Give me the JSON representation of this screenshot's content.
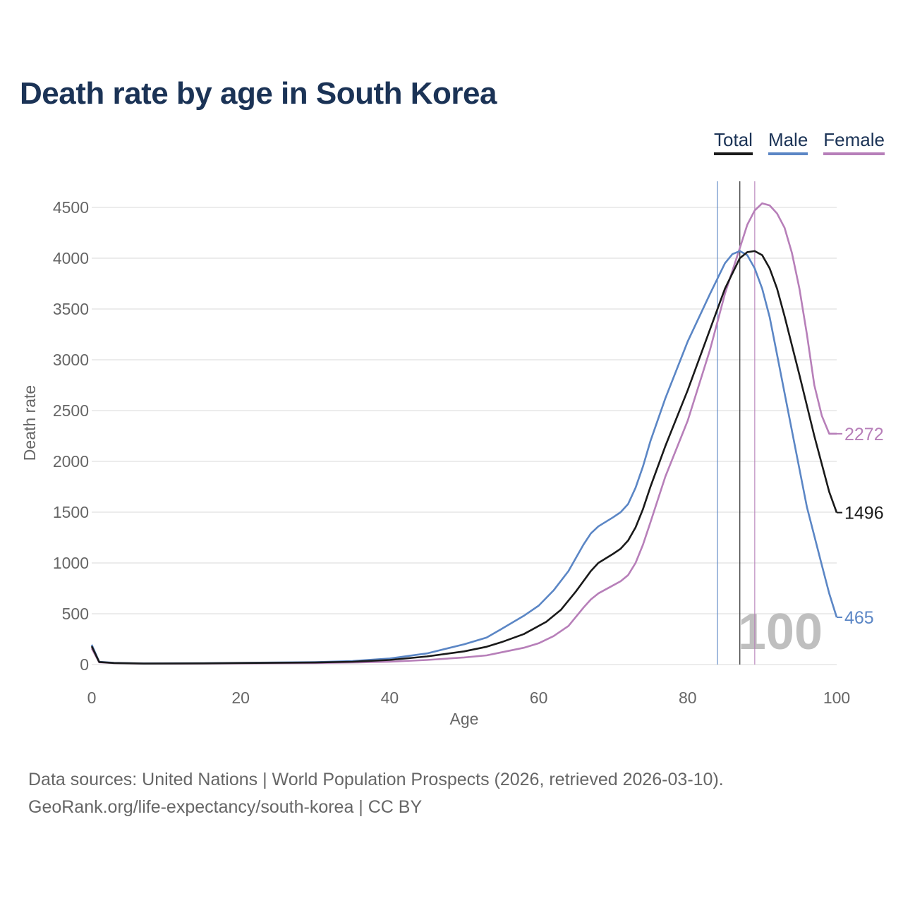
{
  "title": "Death rate by age in South Korea",
  "legend": {
    "total": {
      "label": "Total",
      "color": "#1a1a1a"
    },
    "male": {
      "label": "Male",
      "color": "#5b86c5"
    },
    "female": {
      "label": "Female",
      "color": "#b77fb9"
    }
  },
  "footer": {
    "line1": "Data sources: United Nations | World Population Prospects (2026, retrieved 2026-03-10).",
    "line2": "GeoRank.org/life-expectancy/south-korea | CC BY"
  },
  "chart_data": {
    "type": "line",
    "title": "Death rate by age in South Korea",
    "xlabel": "Age",
    "ylabel": "Death rate",
    "xlim": [
      0,
      100
    ],
    "ylim": [
      0,
      4700
    ],
    "x_ticks": [
      0,
      20,
      40,
      60,
      80,
      100
    ],
    "y_ticks": [
      0,
      500,
      1000,
      1500,
      2000,
      2500,
      3000,
      3500,
      4000,
      4500
    ],
    "grid": true,
    "watermark": "100",
    "series": [
      {
        "name": "Total",
        "color": "#1a1a1a",
        "end_label": "1496",
        "ref_age": 87,
        "points": [
          [
            0,
            180
          ],
          [
            1,
            25
          ],
          [
            3,
            15
          ],
          [
            7,
            10
          ],
          [
            15,
            12
          ],
          [
            20,
            15
          ],
          [
            30,
            20
          ],
          [
            35,
            28
          ],
          [
            40,
            45
          ],
          [
            45,
            80
          ],
          [
            50,
            130
          ],
          [
            53,
            175
          ],
          [
            55,
            220
          ],
          [
            58,
            300
          ],
          [
            61,
            420
          ],
          [
            63,
            540
          ],
          [
            65,
            720
          ],
          [
            67,
            920
          ],
          [
            68,
            1000
          ],
          [
            70,
            1090
          ],
          [
            71,
            1140
          ],
          [
            72,
            1220
          ],
          [
            73,
            1350
          ],
          [
            74,
            1530
          ],
          [
            75,
            1750
          ],
          [
            77,
            2150
          ],
          [
            80,
            2700
          ],
          [
            83,
            3300
          ],
          [
            85,
            3700
          ],
          [
            87,
            4000
          ],
          [
            88,
            4060
          ],
          [
            89,
            4070
          ],
          [
            90,
            4030
          ],
          [
            91,
            3900
          ],
          [
            92,
            3700
          ],
          [
            93,
            3430
          ],
          [
            95,
            2850
          ],
          [
            97,
            2250
          ],
          [
            99,
            1700
          ],
          [
            100,
            1496
          ]
        ]
      },
      {
        "name": "Male",
        "color": "#5b86c5",
        "end_label": "465",
        "ref_age": 84,
        "points": [
          [
            0,
            195
          ],
          [
            1,
            28
          ],
          [
            3,
            17
          ],
          [
            7,
            11
          ],
          [
            15,
            13
          ],
          [
            20,
            17
          ],
          [
            30,
            24
          ],
          [
            35,
            35
          ],
          [
            40,
            60
          ],
          [
            45,
            110
          ],
          [
            50,
            200
          ],
          [
            53,
            265
          ],
          [
            55,
            350
          ],
          [
            58,
            480
          ],
          [
            60,
            580
          ],
          [
            62,
            730
          ],
          [
            64,
            920
          ],
          [
            66,
            1180
          ],
          [
            67,
            1290
          ],
          [
            68,
            1360
          ],
          [
            70,
            1450
          ],
          [
            71,
            1500
          ],
          [
            72,
            1580
          ],
          [
            73,
            1740
          ],
          [
            74,
            1950
          ],
          [
            75,
            2200
          ],
          [
            77,
            2620
          ],
          [
            80,
            3180
          ],
          [
            83,
            3650
          ],
          [
            85,
            3950
          ],
          [
            86,
            4040
          ],
          [
            87,
            4070
          ],
          [
            88,
            4030
          ],
          [
            89,
            3900
          ],
          [
            90,
            3700
          ],
          [
            91,
            3420
          ],
          [
            92,
            3050
          ],
          [
            94,
            2300
          ],
          [
            96,
            1550
          ],
          [
            98,
            980
          ],
          [
            99,
            700
          ],
          [
            100,
            465
          ]
        ]
      },
      {
        "name": "Female",
        "color": "#b77fb9",
        "end_label": "2272",
        "ref_age": 89,
        "points": [
          [
            0,
            160
          ],
          [
            1,
            22
          ],
          [
            3,
            14
          ],
          [
            7,
            9
          ],
          [
            15,
            10
          ],
          [
            20,
            12
          ],
          [
            30,
            15
          ],
          [
            35,
            20
          ],
          [
            40,
            28
          ],
          [
            45,
            45
          ],
          [
            50,
            70
          ],
          [
            53,
            90
          ],
          [
            55,
            120
          ],
          [
            58,
            165
          ],
          [
            60,
            210
          ],
          [
            62,
            280
          ],
          [
            64,
            380
          ],
          [
            66,
            560
          ],
          [
            67,
            640
          ],
          [
            68,
            700
          ],
          [
            70,
            780
          ],
          [
            71,
            820
          ],
          [
            72,
            880
          ],
          [
            73,
            1000
          ],
          [
            74,
            1180
          ],
          [
            75,
            1400
          ],
          [
            77,
            1850
          ],
          [
            80,
            2400
          ],
          [
            83,
            3100
          ],
          [
            85,
            3650
          ],
          [
            87,
            4100
          ],
          [
            88,
            4330
          ],
          [
            89,
            4470
          ],
          [
            90,
            4540
          ],
          [
            91,
            4520
          ],
          [
            92,
            4440
          ],
          [
            93,
            4300
          ],
          [
            94,
            4050
          ],
          [
            95,
            3700
          ],
          [
            96,
            3250
          ],
          [
            97,
            2750
          ],
          [
            98,
            2450
          ],
          [
            99,
            2272
          ],
          [
            100,
            2272
          ]
        ]
      }
    ]
  }
}
